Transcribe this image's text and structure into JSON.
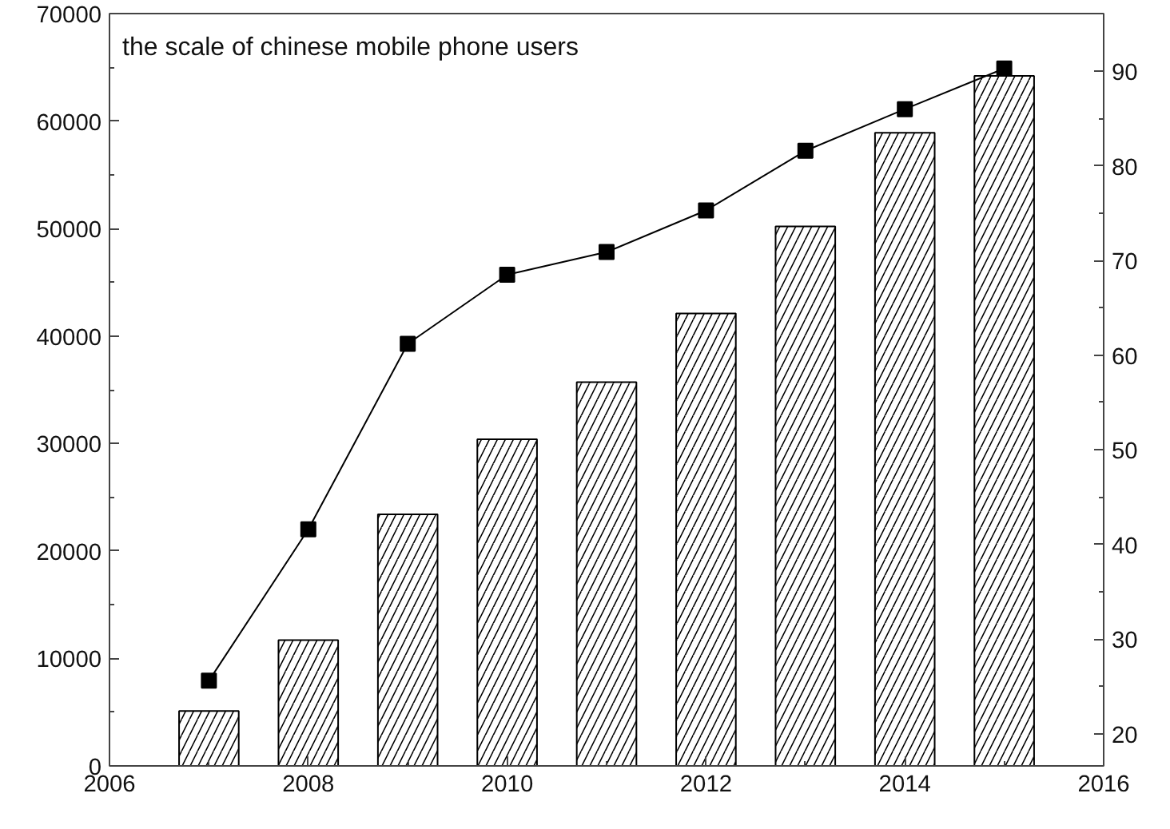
{
  "chart_data": {
    "type": "bar",
    "title": "the scale of chinese mobile phone users",
    "x": [
      2007,
      2008,
      2009,
      2010,
      2011,
      2012,
      2013,
      2014,
      2015
    ],
    "series": [
      {
        "color": "#000000",
        "values": [
          5100,
          11700,
          23400,
          30400,
          35700,
          42100,
          50200,
          58900,
          64200
        ]
      },
      {
        "type": "line",
        "axis": "y2",
        "color": "#000000",
        "values": [
          25.6,
          41.6,
          61.2,
          68.5,
          70.9,
          75.3,
          81.6,
          86.0,
          90.3
        ]
      }
    ],
    "xlim": [
      2006,
      2016
    ],
    "xticks": [
      2006,
      2008,
      2010,
      2012,
      2014,
      2016
    ],
    "ylim": [
      0,
      70000
    ],
    "yticks": [
      0,
      10000,
      20000,
      30000,
      40000,
      50000,
      60000,
      70000
    ],
    "y2lim": [
      16.6,
      96.1
    ],
    "y2ticks": [
      20,
      30,
      40,
      50,
      60,
      70,
      80,
      90
    ],
    "grid": false,
    "marker": "square",
    "line_style": "solid"
  }
}
